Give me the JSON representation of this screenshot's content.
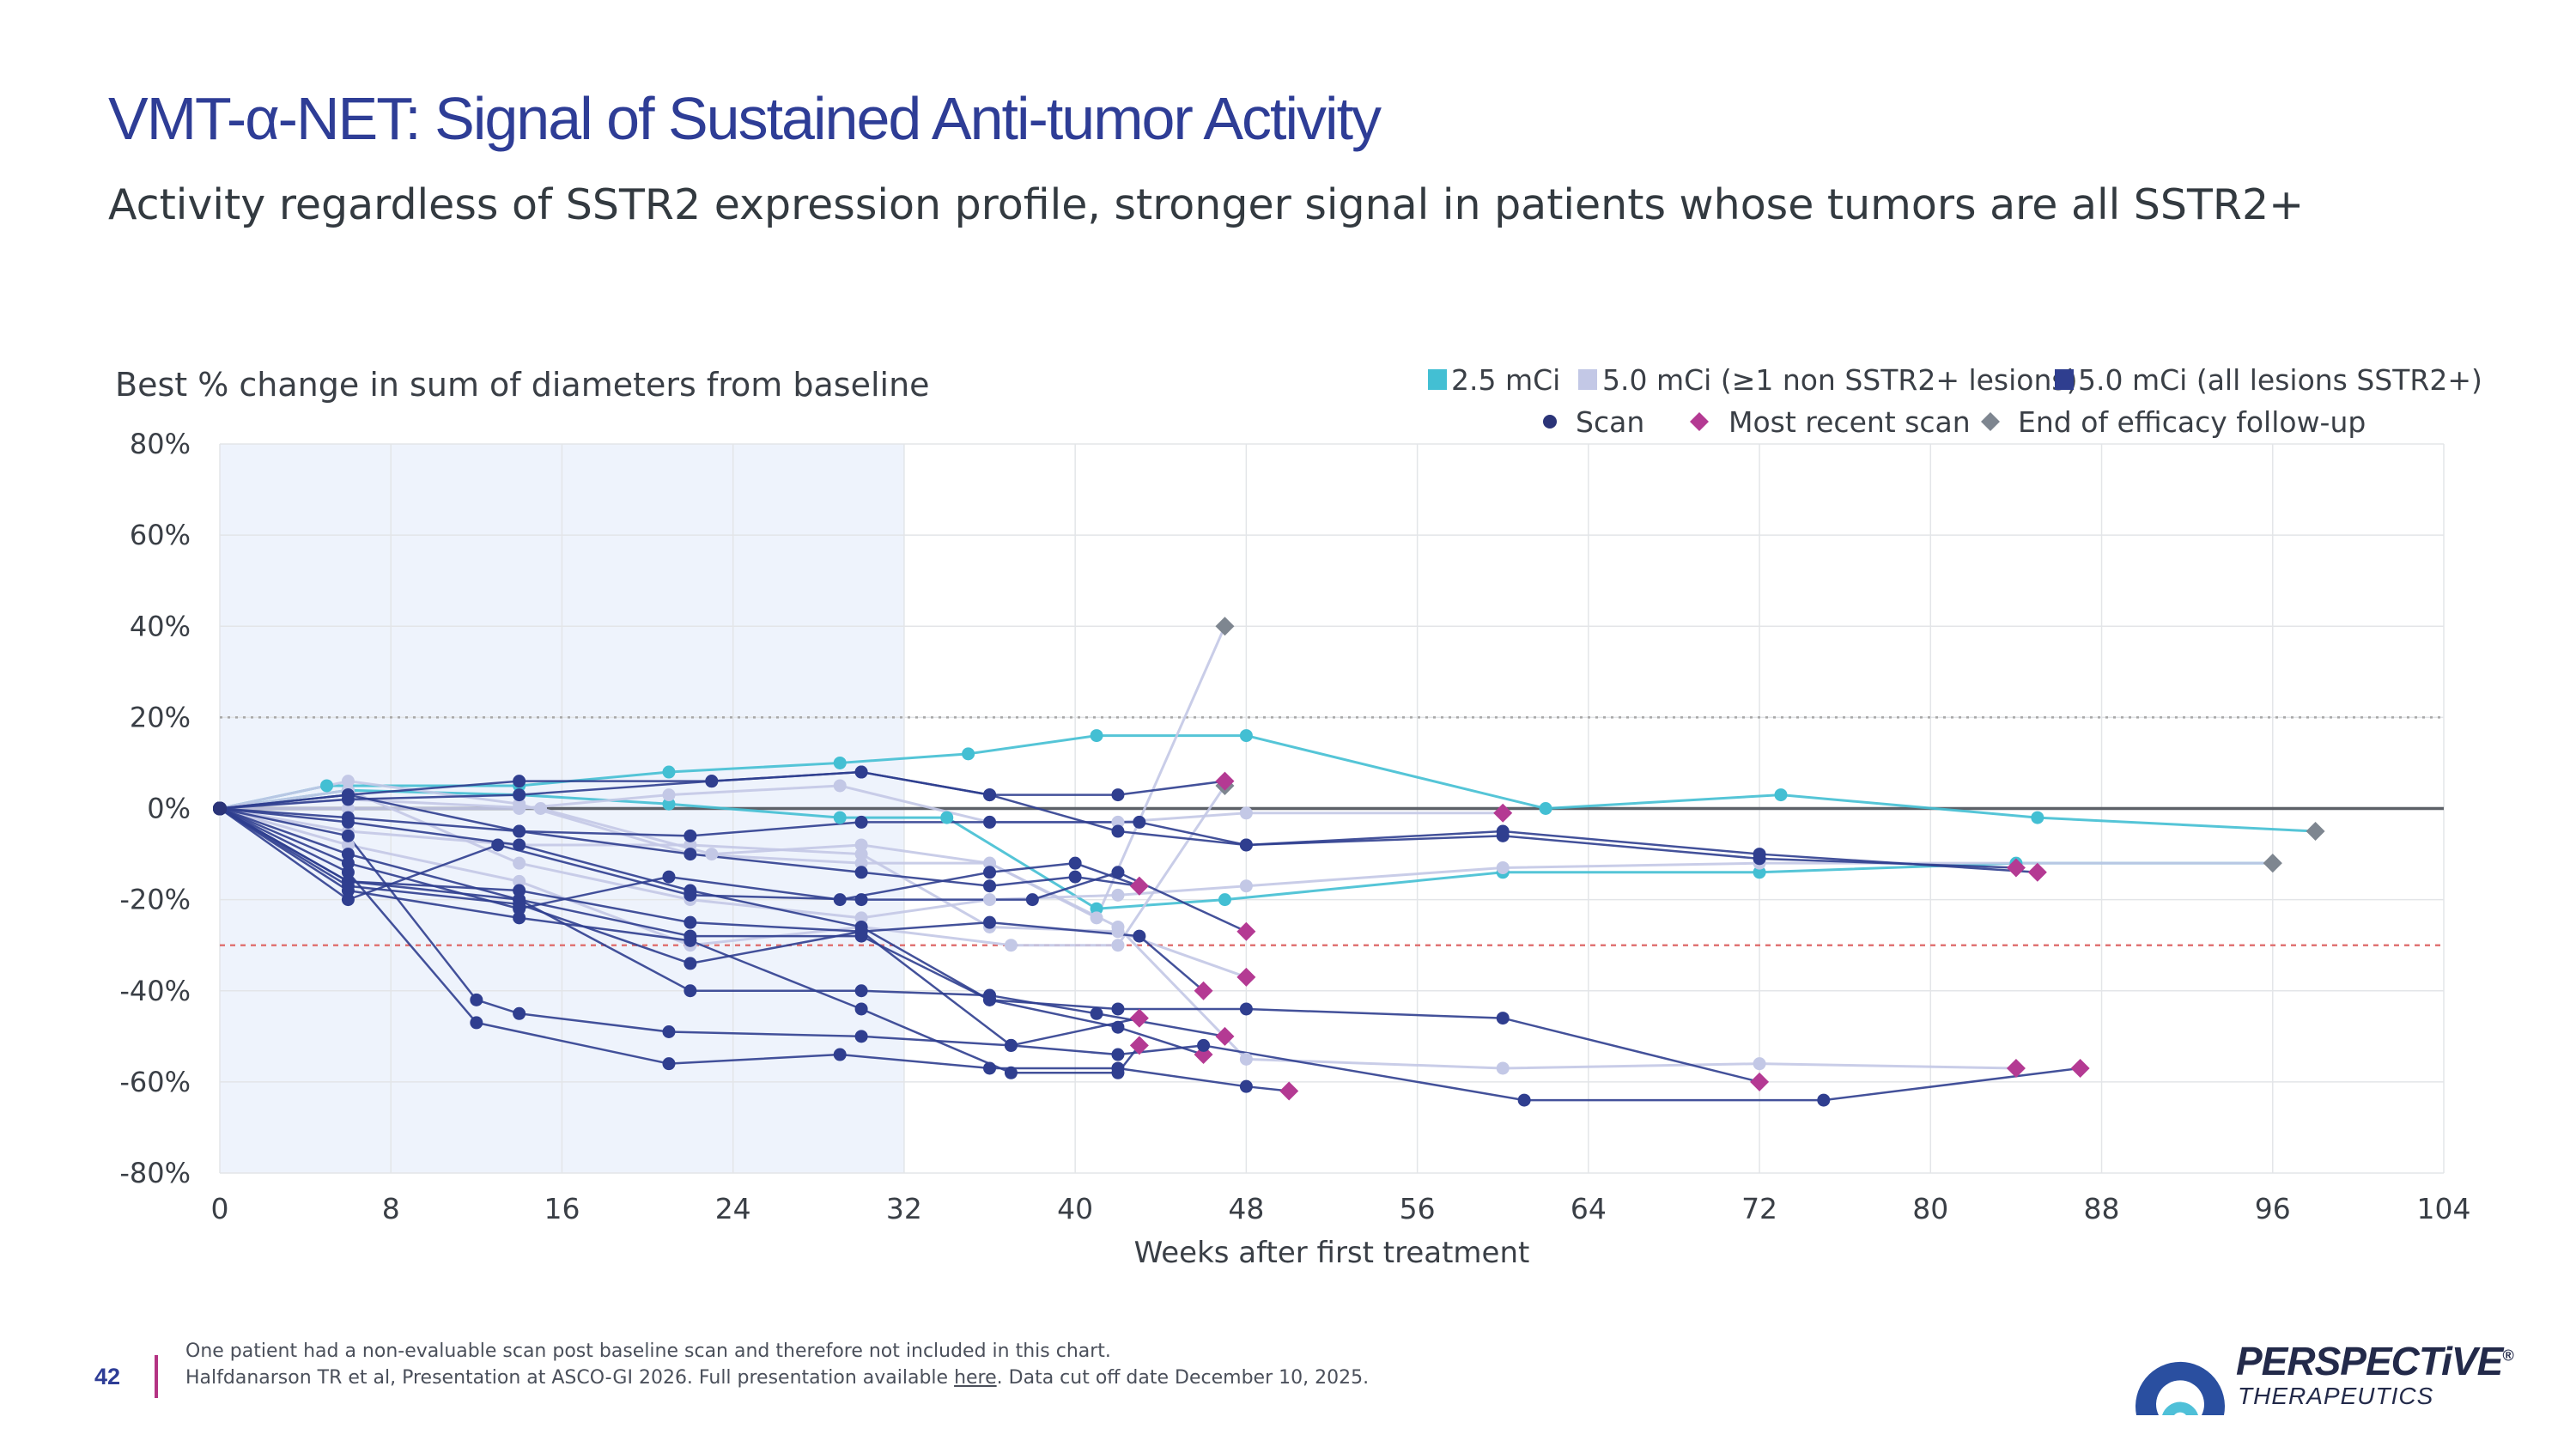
{
  "page": {
    "title": "VMT-α-NET: Signal of Sustained Anti-tumor Activity",
    "subtitle": "Activity regardless of SSTR2 expression profile, stronger signal in patients whose tumors are all SSTR2+",
    "page_number": "42"
  },
  "footer": {
    "note1": "One patient had a non-evaluable scan post baseline scan and therefore not included in this chart.",
    "note2_prefix": "Halfdanarson TR et al, Presentation at ASCO-GI 2026. Full presentation available ",
    "note2_link": "here",
    "note2_suffix": ". Data cut off date December 10, 2025."
  },
  "logo": {
    "name": "PERSPECTiVE",
    "reg": "®",
    "sub": "THERAPEUTICS"
  },
  "colors": {
    "dose_2_5": "#43bfd3",
    "dose_5_mixed": "#c3c8e6",
    "dose_5_all": "#2f3e8f",
    "scan_marker": "#2b3478",
    "most_recent": "#b43a93",
    "end_followup": "#7e8690",
    "shade": "#eef3fc",
    "ref_line_20": "#a8a8a8",
    "ref_line_minus30": "#e07474",
    "title": "#2e3d96"
  },
  "chart_data": {
    "type": "line",
    "ylabel": "Best % change in sum of diameters from baseline",
    "xlabel": "Weeks after first treatment",
    "xlim": [
      0,
      104
    ],
    "ylim": [
      -80,
      80
    ],
    "x_ticks": [
      0,
      8,
      16,
      24,
      32,
      40,
      48,
      56,
      64,
      72,
      80,
      88,
      96,
      104
    ],
    "y_ticks": [
      -80,
      -60,
      -40,
      -20,
      0,
      20,
      40,
      60,
      80
    ],
    "y_tick_labels": [
      "-80%",
      "-60%",
      "-40%",
      "-20%",
      "0%",
      "20%",
      "40%",
      "60%",
      "80%"
    ],
    "shaded_region_weeks": [
      0,
      32
    ],
    "reference_lines": [
      {
        "y": 20,
        "style": "dotted"
      },
      {
        "y": -30,
        "style": "dashed"
      },
      {
        "y": 0,
        "style": "solid"
      }
    ],
    "legend": {
      "groups": [
        {
          "label": "2.5 mCi",
          "color_key": "dose_2_5"
        },
        {
          "label": "5.0 mCi (≥1 non SSTR2+ lesions)",
          "color_key": "dose_5_mixed"
        },
        {
          "label": "5.0 mCi (all lesions SSTR2+)",
          "color_key": "dose_5_all"
        }
      ],
      "markers": [
        {
          "label": "Scan",
          "shape": "circle",
          "color_key": "scan_marker"
        },
        {
          "label": "Most recent scan",
          "shape": "diamond",
          "color_key": "most_recent"
        },
        {
          "label": "End of efficacy follow-up",
          "shape": "diamond",
          "color_key": "end_followup"
        }
      ]
    },
    "series": [
      {
        "group": "dose_2_5",
        "end": "end",
        "points": [
          [
            0,
            0
          ],
          [
            5,
            5
          ],
          [
            14,
            5
          ],
          [
            21,
            8
          ],
          [
            29,
            10
          ],
          [
            35,
            12
          ],
          [
            41,
            16
          ],
          [
            48,
            16
          ],
          [
            62,
            0
          ],
          [
            73,
            3
          ],
          [
            85,
            -2
          ],
          [
            98,
            -5
          ]
        ]
      },
      {
        "group": "dose_2_5",
        "end": "end",
        "points": [
          [
            0,
            0
          ],
          [
            6,
            4
          ],
          [
            14,
            3
          ],
          [
            21,
            1
          ],
          [
            29,
            -2
          ],
          [
            34,
            -2
          ],
          [
            41,
            -22
          ],
          [
            47,
            -20
          ],
          [
            60,
            -14
          ],
          [
            72,
            -14
          ],
          [
            84,
            -12
          ],
          [
            96,
            -12
          ]
        ]
      },
      {
        "group": "dose_5_mixed",
        "end": "end",
        "points": [
          [
            0,
            0
          ],
          [
            6,
            6
          ],
          [
            14,
            1
          ],
          [
            22,
            -10
          ],
          [
            30,
            -12
          ],
          [
            36,
            -12
          ],
          [
            41,
            -24
          ],
          [
            47,
            40
          ]
        ]
      },
      {
        "group": "dose_5_mixed",
        "end": "recent",
        "points": [
          [
            0,
            0
          ],
          [
            6,
            0
          ],
          [
            14,
            0
          ],
          [
            21,
            3
          ],
          [
            29,
            5
          ],
          [
            36,
            -3
          ],
          [
            42,
            -3
          ],
          [
            48,
            -1
          ],
          [
            60,
            -1
          ]
        ]
      },
      {
        "group": "dose_5_mixed",
        "end": "recent",
        "points": [
          [
            0,
            0
          ],
          [
            6,
            -5
          ],
          [
            14,
            -8
          ],
          [
            22,
            -8
          ],
          [
            30,
            -10
          ],
          [
            36,
            -26
          ],
          [
            42,
            -27
          ],
          [
            48,
            -37
          ]
        ]
      },
      {
        "group": "dose_5_mixed",
        "end": "end",
        "points": [
          [
            0,
            0
          ],
          [
            6,
            -8
          ],
          [
            14,
            -16
          ],
          [
            22,
            -30
          ],
          [
            30,
            -26
          ],
          [
            37,
            -30
          ],
          [
            42,
            -30
          ],
          [
            47,
            5
          ]
        ]
      },
      {
        "group": "dose_5_mixed",
        "end": "recent",
        "points": [
          [
            0,
            0
          ],
          [
            6,
            2
          ],
          [
            15,
            0
          ],
          [
            23,
            -10
          ],
          [
            30,
            -8
          ],
          [
            36,
            -12
          ],
          [
            42,
            -26
          ],
          [
            48,
            -55
          ],
          [
            60,
            -57
          ],
          [
            72,
            -56
          ],
          [
            84,
            -57
          ]
        ]
      },
      {
        "group": "dose_5_mixed",
        "end": "end",
        "points": [
          [
            0,
            0
          ],
          [
            6,
            4
          ],
          [
            14,
            -12
          ],
          [
            22,
            -20
          ],
          [
            30,
            -24
          ],
          [
            36,
            -20
          ],
          [
            42,
            -19
          ],
          [
            48,
            -17
          ],
          [
            60,
            -13
          ],
          [
            72,
            -12
          ],
          [
            96,
            -12
          ]
        ]
      },
      {
        "group": "dose_5_all",
        "end": "recent",
        "points": [
          [
            0,
            0
          ],
          [
            6,
            3
          ],
          [
            14,
            6
          ],
          [
            23,
            6
          ],
          [
            30,
            8
          ],
          [
            36,
            3
          ],
          [
            42,
            3
          ],
          [
            47,
            6
          ]
        ]
      },
      {
        "group": "dose_5_all",
        "end": "recent",
        "points": [
          [
            0,
            0
          ],
          [
            6,
            3
          ],
          [
            14,
            -5
          ],
          [
            22,
            -10
          ],
          [
            30,
            -14
          ],
          [
            36,
            -17
          ],
          [
            40,
            -15
          ],
          [
            43,
            -17
          ]
        ]
      },
      {
        "group": "dose_5_all",
        "end": "recent",
        "points": [
          [
            0,
            0
          ],
          [
            6,
            -3
          ],
          [
            14,
            -8
          ],
          [
            22,
            -18
          ],
          [
            30,
            -26
          ],
          [
            36,
            -42
          ],
          [
            42,
            -44
          ],
          [
            48,
            -44
          ],
          [
            60,
            -46
          ],
          [
            72,
            -60
          ]
        ]
      },
      {
        "group": "dose_5_all",
        "end": "recent",
        "points": [
          [
            0,
            0
          ],
          [
            6,
            -6
          ],
          [
            12,
            -42
          ],
          [
            14,
            -45
          ],
          [
            21,
            -49
          ],
          [
            30,
            -50
          ],
          [
            37,
            -52
          ],
          [
            43,
            -46
          ]
        ]
      },
      {
        "group": "dose_5_all",
        "end": "recent",
        "points": [
          [
            0,
            0
          ],
          [
            6,
            -14
          ],
          [
            12,
            -47
          ],
          [
            21,
            -56
          ],
          [
            29,
            -54
          ],
          [
            36,
            -57
          ],
          [
            42,
            -57
          ],
          [
            48,
            -61
          ],
          [
            50,
            -62
          ]
        ]
      },
      {
        "group": "dose_5_all",
        "end": "recent",
        "points": [
          [
            0,
            0
          ],
          [
            6,
            -10
          ],
          [
            14,
            -20
          ],
          [
            22,
            -40
          ],
          [
            30,
            -40
          ],
          [
            36,
            -41
          ],
          [
            41,
            -45
          ],
          [
            47,
            -50
          ]
        ]
      },
      {
        "group": "dose_5_all",
        "end": "recent",
        "points": [
          [
            0,
            0
          ],
          [
            6,
            -16
          ],
          [
            14,
            -20
          ],
          [
            22,
            -28
          ],
          [
            30,
            -28
          ],
          [
            36,
            -42
          ],
          [
            42,
            -48
          ],
          [
            46,
            -54
          ]
        ]
      },
      {
        "group": "dose_5_all",
        "end": "recent",
        "points": [
          [
            0,
            0
          ],
          [
            6,
            -18
          ],
          [
            14,
            -24
          ],
          [
            22,
            -29
          ],
          [
            30,
            -44
          ],
          [
            37,
            -58
          ],
          [
            42,
            -58
          ],
          [
            43,
            -52
          ]
        ]
      },
      {
        "group": "dose_5_all",
        "end": "recent",
        "points": [
          [
            0,
            0
          ],
          [
            6,
            -12
          ],
          [
            14,
            -22
          ],
          [
            21,
            -15
          ],
          [
            29,
            -20
          ],
          [
            36,
            -14
          ],
          [
            40,
            -12
          ],
          [
            43,
            -17
          ]
        ]
      },
      {
        "group": "dose_5_all",
        "end": "recent",
        "points": [
          [
            0,
            0
          ],
          [
            6,
            -20
          ],
          [
            13,
            -8
          ],
          [
            22,
            -19
          ],
          [
            30,
            -20
          ],
          [
            38,
            -20
          ],
          [
            42,
            -14
          ],
          [
            48,
            -27
          ]
        ]
      },
      {
        "group": "dose_5_all",
        "end": "recent",
        "points": [
          [
            0,
            0
          ],
          [
            6,
            -2
          ],
          [
            14,
            -5
          ],
          [
            22,
            -6
          ],
          [
            30,
            -3
          ],
          [
            36,
            -3
          ],
          [
            43,
            -3
          ],
          [
            48,
            -8
          ],
          [
            60,
            -6
          ],
          [
            72,
            -11
          ],
          [
            84,
            -13
          ]
        ]
      },
      {
        "group": "dose_5_all",
        "end": "recent",
        "points": [
          [
            0,
            0
          ],
          [
            6,
            2
          ],
          [
            14,
            3
          ],
          [
            23,
            6
          ],
          [
            30,
            8
          ],
          [
            36,
            3
          ],
          [
            42,
            -5
          ],
          [
            48,
            -8
          ],
          [
            60,
            -5
          ],
          [
            72,
            -10
          ],
          [
            85,
            -14
          ]
        ]
      },
      {
        "group": "dose_5_all",
        "end": "recent",
        "points": [
          [
            0,
            0
          ],
          [
            6,
            -16
          ],
          [
            14,
            -18
          ],
          [
            22,
            -25
          ],
          [
            30,
            -27
          ],
          [
            37,
            -52
          ],
          [
            42,
            -54
          ],
          [
            46,
            -52
          ],
          [
            61,
            -64
          ],
          [
            75,
            -64
          ],
          [
            87,
            -57
          ]
        ]
      },
      {
        "group": "dose_5_all",
        "end": "recent",
        "points": [
          [
            0,
            0
          ],
          [
            6,
            -17
          ],
          [
            14,
            -21
          ],
          [
            22,
            -34
          ],
          [
            30,
            -27
          ],
          [
            36,
            -25
          ],
          [
            43,
            -28
          ],
          [
            46,
            -40
          ]
        ]
      }
    ]
  }
}
